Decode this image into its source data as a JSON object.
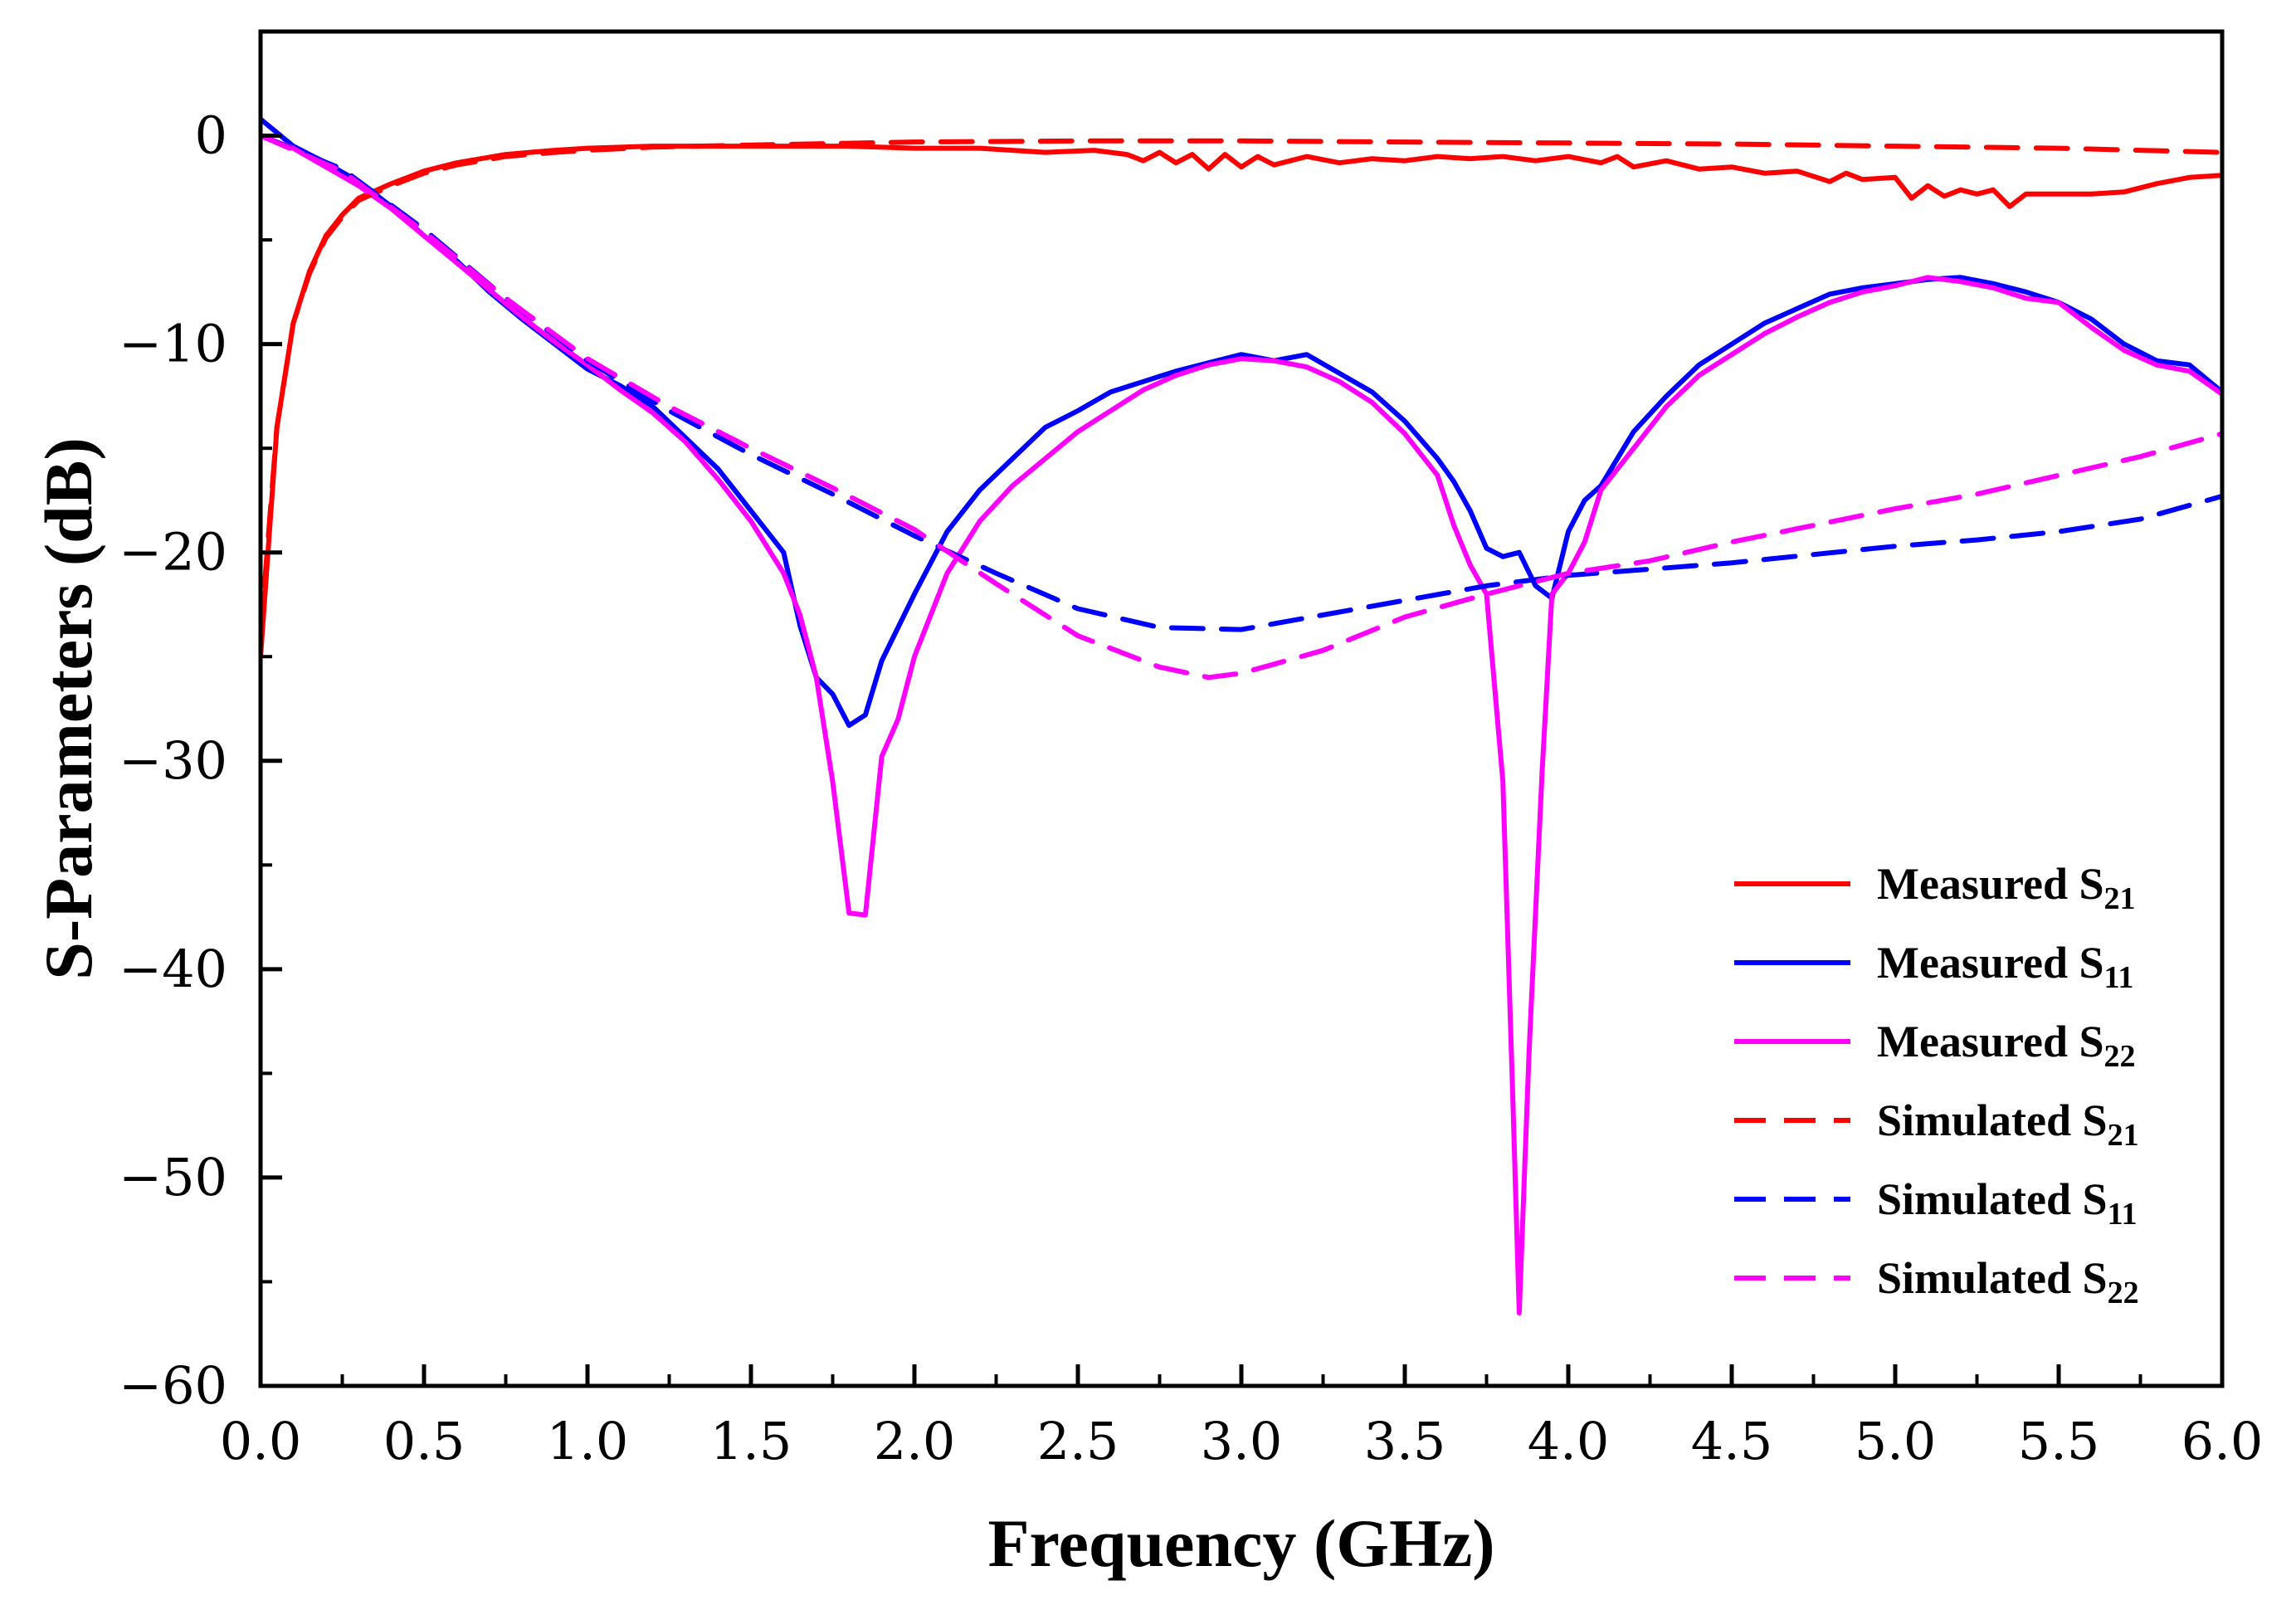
{
  "chart_data": {
    "type": "line",
    "title": "",
    "xlabel": "Frequency (GHz)",
    "ylabel": "S-Parameters (dB)",
    "xlim": [
      0,
      6
    ],
    "ylim": [
      -60,
      5
    ],
    "x_ticks": [
      0,
      0.5,
      1,
      1.5,
      2,
      2.5,
      3,
      3.5,
      4,
      4.5,
      5,
      5.5,
      6
    ],
    "x_tick_labels": [
      "0.0",
      "0.5",
      "1.0",
      "1.5",
      "2.0",
      "2.5",
      "3.0",
      "3.5",
      "4.0",
      "4.5",
      "5.0",
      "5.5",
      "6.0"
    ],
    "y_ticks": [
      0,
      -10,
      -20,
      -30,
      -40,
      -50,
      -60
    ],
    "y_tick_labels": [
      "0",
      "−10",
      "−20",
      "−30",
      "−40",
      "−50",
      "−60"
    ],
    "grid": false,
    "legend_position": "lower-right",
    "series": [
      {
        "name": "Measured S21",
        "label_main": "Measured S",
        "label_sub": "21",
        "color": "#ff0000",
        "dash": "solid",
        "x": [
          0,
          0.05,
          0.1,
          0.15,
          0.2,
          0.25,
          0.3,
          0.4,
          0.5,
          0.6,
          0.75,
          0.9,
          1.0,
          1.2,
          1.4,
          1.6,
          1.8,
          2.0,
          2.2,
          2.4,
          2.55,
          2.65,
          2.7,
          2.75,
          2.8,
          2.85,
          2.9,
          2.95,
          3.0,
          3.05,
          3.1,
          3.15,
          3.2,
          3.3,
          3.4,
          3.5,
          3.6,
          3.7,
          3.8,
          3.9,
          4.0,
          4.1,
          4.15,
          4.2,
          4.3,
          4.4,
          4.5,
          4.6,
          4.7,
          4.8,
          4.85,
          4.9,
          5.0,
          5.05,
          5.1,
          5.15,
          5.2,
          5.25,
          5.3,
          5.35,
          5.4,
          5.5,
          5.6,
          5.7,
          5.8,
          5.9,
          6.0
        ],
        "y": [
          -25,
          -14,
          -9,
          -6.5,
          -4.8,
          -3.8,
          -3.0,
          -2.3,
          -1.7,
          -1.3,
          -0.9,
          -0.7,
          -0.6,
          -0.5,
          -0.5,
          -0.5,
          -0.5,
          -0.6,
          -0.6,
          -0.8,
          -0.7,
          -0.9,
          -1.2,
          -0.8,
          -1.3,
          -0.9,
          -1.6,
          -0.9,
          -1.5,
          -1.0,
          -1.4,
          -1.2,
          -1.0,
          -1.3,
          -1.1,
          -1.2,
          -1.0,
          -1.1,
          -1.0,
          -1.2,
          -1.0,
          -1.3,
          -1.0,
          -1.5,
          -1.2,
          -1.6,
          -1.5,
          -1.8,
          -1.7,
          -2.2,
          -1.8,
          -2.1,
          -2.0,
          -3.0,
          -2.4,
          -2.9,
          -2.6,
          -2.8,
          -2.6,
          -3.4,
          -2.8,
          -2.8,
          -2.8,
          -2.7,
          -2.3,
          -2.0,
          -1.9
        ]
      },
      {
        "name": "Measured S11",
        "label_main": "Measured S",
        "label_sub": "11",
        "color": "#0000ff",
        "dash": "solid",
        "x": [
          0,
          0.1,
          0.2,
          0.3,
          0.4,
          0.5,
          0.6,
          0.7,
          0.8,
          0.9,
          1.0,
          1.1,
          1.2,
          1.3,
          1.4,
          1.5,
          1.6,
          1.65,
          1.7,
          1.75,
          1.8,
          1.85,
          1.9,
          2.0,
          2.1,
          2.2,
          2.3,
          2.4,
          2.5,
          2.6,
          2.7,
          2.8,
          2.9,
          3.0,
          3.1,
          3.2,
          3.3,
          3.4,
          3.5,
          3.6,
          3.65,
          3.7,
          3.75,
          3.8,
          3.85,
          3.9,
          3.95,
          4.0,
          4.05,
          4.1,
          4.2,
          4.3,
          4.4,
          4.5,
          4.6,
          4.7,
          4.8,
          4.9,
          5.0,
          5.1,
          5.2,
          5.3,
          5.4,
          5.5,
          5.6,
          5.7,
          5.8,
          5.9,
          6.0
        ],
        "y": [
          0.8,
          -0.5,
          -1.3,
          -2.2,
          -3.4,
          -4.8,
          -6.0,
          -7.5,
          -8.8,
          -10.0,
          -11.2,
          -12.0,
          -13.0,
          -14.5,
          -16.0,
          -18.0,
          -20.0,
          -23.5,
          -26.0,
          -26.8,
          -28.3,
          -27.8,
          -25.2,
          -22.0,
          -19.0,
          -17.0,
          -15.5,
          -14.0,
          -13.2,
          -12.3,
          -11.8,
          -11.3,
          -10.9,
          -10.5,
          -10.8,
          -10.5,
          -11.4,
          -12.3,
          -13.7,
          -15.5,
          -16.6,
          -18.0,
          -19.8,
          -20.2,
          -20.0,
          -21.6,
          -22.2,
          -19.0,
          -17.5,
          -16.8,
          -14.2,
          -12.5,
          -11.0,
          -10.0,
          -9.0,
          -8.3,
          -7.6,
          -7.3,
          -7.1,
          -6.9,
          -6.8,
          -7.1,
          -7.5,
          -8.0,
          -8.8,
          -10.0,
          -10.8,
          -11.0,
          -12.3
        ]
      },
      {
        "name": "Measured S22",
        "label_main": "Measured S",
        "label_sub": "22",
        "color": "#ff00ff",
        "dash": "solid",
        "x": [
          0,
          0.1,
          0.2,
          0.3,
          0.4,
          0.5,
          0.6,
          0.7,
          0.8,
          0.9,
          1.0,
          1.1,
          1.2,
          1.3,
          1.4,
          1.5,
          1.6,
          1.65,
          1.7,
          1.75,
          1.8,
          1.85,
          1.9,
          1.95,
          2.0,
          2.1,
          2.2,
          2.3,
          2.4,
          2.5,
          2.6,
          2.7,
          2.8,
          2.9,
          3.0,
          3.1,
          3.2,
          3.3,
          3.4,
          3.5,
          3.6,
          3.65,
          3.7,
          3.75,
          3.8,
          3.83,
          3.85,
          3.88,
          3.92,
          3.95,
          4.0,
          4.05,
          4.1,
          4.2,
          4.3,
          4.4,
          4.5,
          4.6,
          4.7,
          4.8,
          4.9,
          5.0,
          5.1,
          5.2,
          5.3,
          5.4,
          5.5,
          5.6,
          5.7,
          5.8,
          5.9,
          6.0
        ],
        "y": [
          0,
          -0.6,
          -1.5,
          -2.4,
          -3.5,
          -4.8,
          -6.1,
          -7.4,
          -8.7,
          -9.9,
          -11.0,
          -12.2,
          -13.3,
          -14.7,
          -16.5,
          -18.5,
          -21.0,
          -23.0,
          -26.0,
          -31.0,
          -37.3,
          -37.4,
          -29.8,
          -28.0,
          -25.0,
          -21.0,
          -18.5,
          -16.8,
          -15.5,
          -14.2,
          -13.2,
          -12.2,
          -11.5,
          -11.0,
          -10.7,
          -10.8,
          -11.1,
          -11.8,
          -12.8,
          -14.3,
          -16.3,
          -18.7,
          -20.6,
          -22.0,
          -31.0,
          -46.0,
          -56.5,
          -44.0,
          -30.5,
          -22.0,
          -21.0,
          -19.5,
          -17.0,
          -15.0,
          -13.0,
          -11.5,
          -10.5,
          -9.5,
          -8.7,
          -8.0,
          -7.5,
          -7.2,
          -6.8,
          -7.0,
          -7.3,
          -7.8,
          -8.0,
          -9.2,
          -10.3,
          -11.0,
          -11.3,
          -12.4
        ]
      },
      {
        "name": "Simulated S21",
        "label_main": "Simulated S",
        "label_sub": "21",
        "color": "#ff0000",
        "dash": "dashed",
        "x": [
          0,
          0.05,
          0.1,
          0.15,
          0.2,
          0.25,
          0.3,
          0.4,
          0.5,
          0.6,
          0.75,
          0.9,
          1.0,
          1.2,
          1.5,
          2.0,
          2.5,
          3.0,
          3.5,
          4.0,
          4.5,
          5.0,
          5.5,
          6.0
        ],
        "y": [
          -24,
          -14,
          -9,
          -6.6,
          -4.9,
          -3.9,
          -3.1,
          -2.4,
          -1.8,
          -1.4,
          -1.0,
          -0.8,
          -0.7,
          -0.55,
          -0.45,
          -0.3,
          -0.25,
          -0.25,
          -0.3,
          -0.35,
          -0.4,
          -0.5,
          -0.6,
          -0.8
        ]
      },
      {
        "name": "Simulated S11",
        "label_main": "Simulated S",
        "label_sub": "11",
        "color": "#0000ff",
        "dash": "dashed",
        "x": [
          0,
          0.25,
          0.5,
          0.75,
          1.0,
          1.25,
          1.5,
          1.75,
          2.0,
          2.25,
          2.5,
          2.75,
          3.0,
          3.25,
          3.5,
          3.75,
          4.0,
          4.25,
          4.5,
          4.75,
          5.0,
          5.25,
          5.5,
          5.75,
          6.0
        ],
        "y": [
          0,
          -1.6,
          -4.5,
          -7.8,
          -10.8,
          -13.2,
          -15.3,
          -17.2,
          -19.2,
          -21.0,
          -22.7,
          -23.6,
          -23.7,
          -23.0,
          -22.3,
          -21.6,
          -21.1,
          -20.8,
          -20.5,
          -20.1,
          -19.7,
          -19.4,
          -19.0,
          -18.4,
          -17.3
        ]
      },
      {
        "name": "Simulated S22",
        "label_main": "Simulated S",
        "label_sub": "22",
        "color": "#ff00ff",
        "dash": "dashed",
        "x": [
          0,
          0.25,
          0.5,
          0.75,
          1.0,
          1.25,
          1.5,
          1.75,
          2.0,
          2.25,
          2.5,
          2.75,
          2.9,
          3.0,
          3.25,
          3.5,
          3.75,
          4.0,
          4.25,
          4.5,
          4.75,
          5.0,
          5.25,
          5.5,
          5.75,
          6.0
        ],
        "y": [
          0,
          -1.7,
          -4.6,
          -7.8,
          -10.7,
          -13.0,
          -15.0,
          -16.9,
          -18.9,
          -21.5,
          -24.0,
          -25.5,
          -26.0,
          -25.8,
          -24.7,
          -23.1,
          -22.0,
          -21.0,
          -20.4,
          -19.5,
          -18.7,
          -17.9,
          -17.2,
          -16.3,
          -15.4,
          -14.3
        ]
      }
    ]
  }
}
